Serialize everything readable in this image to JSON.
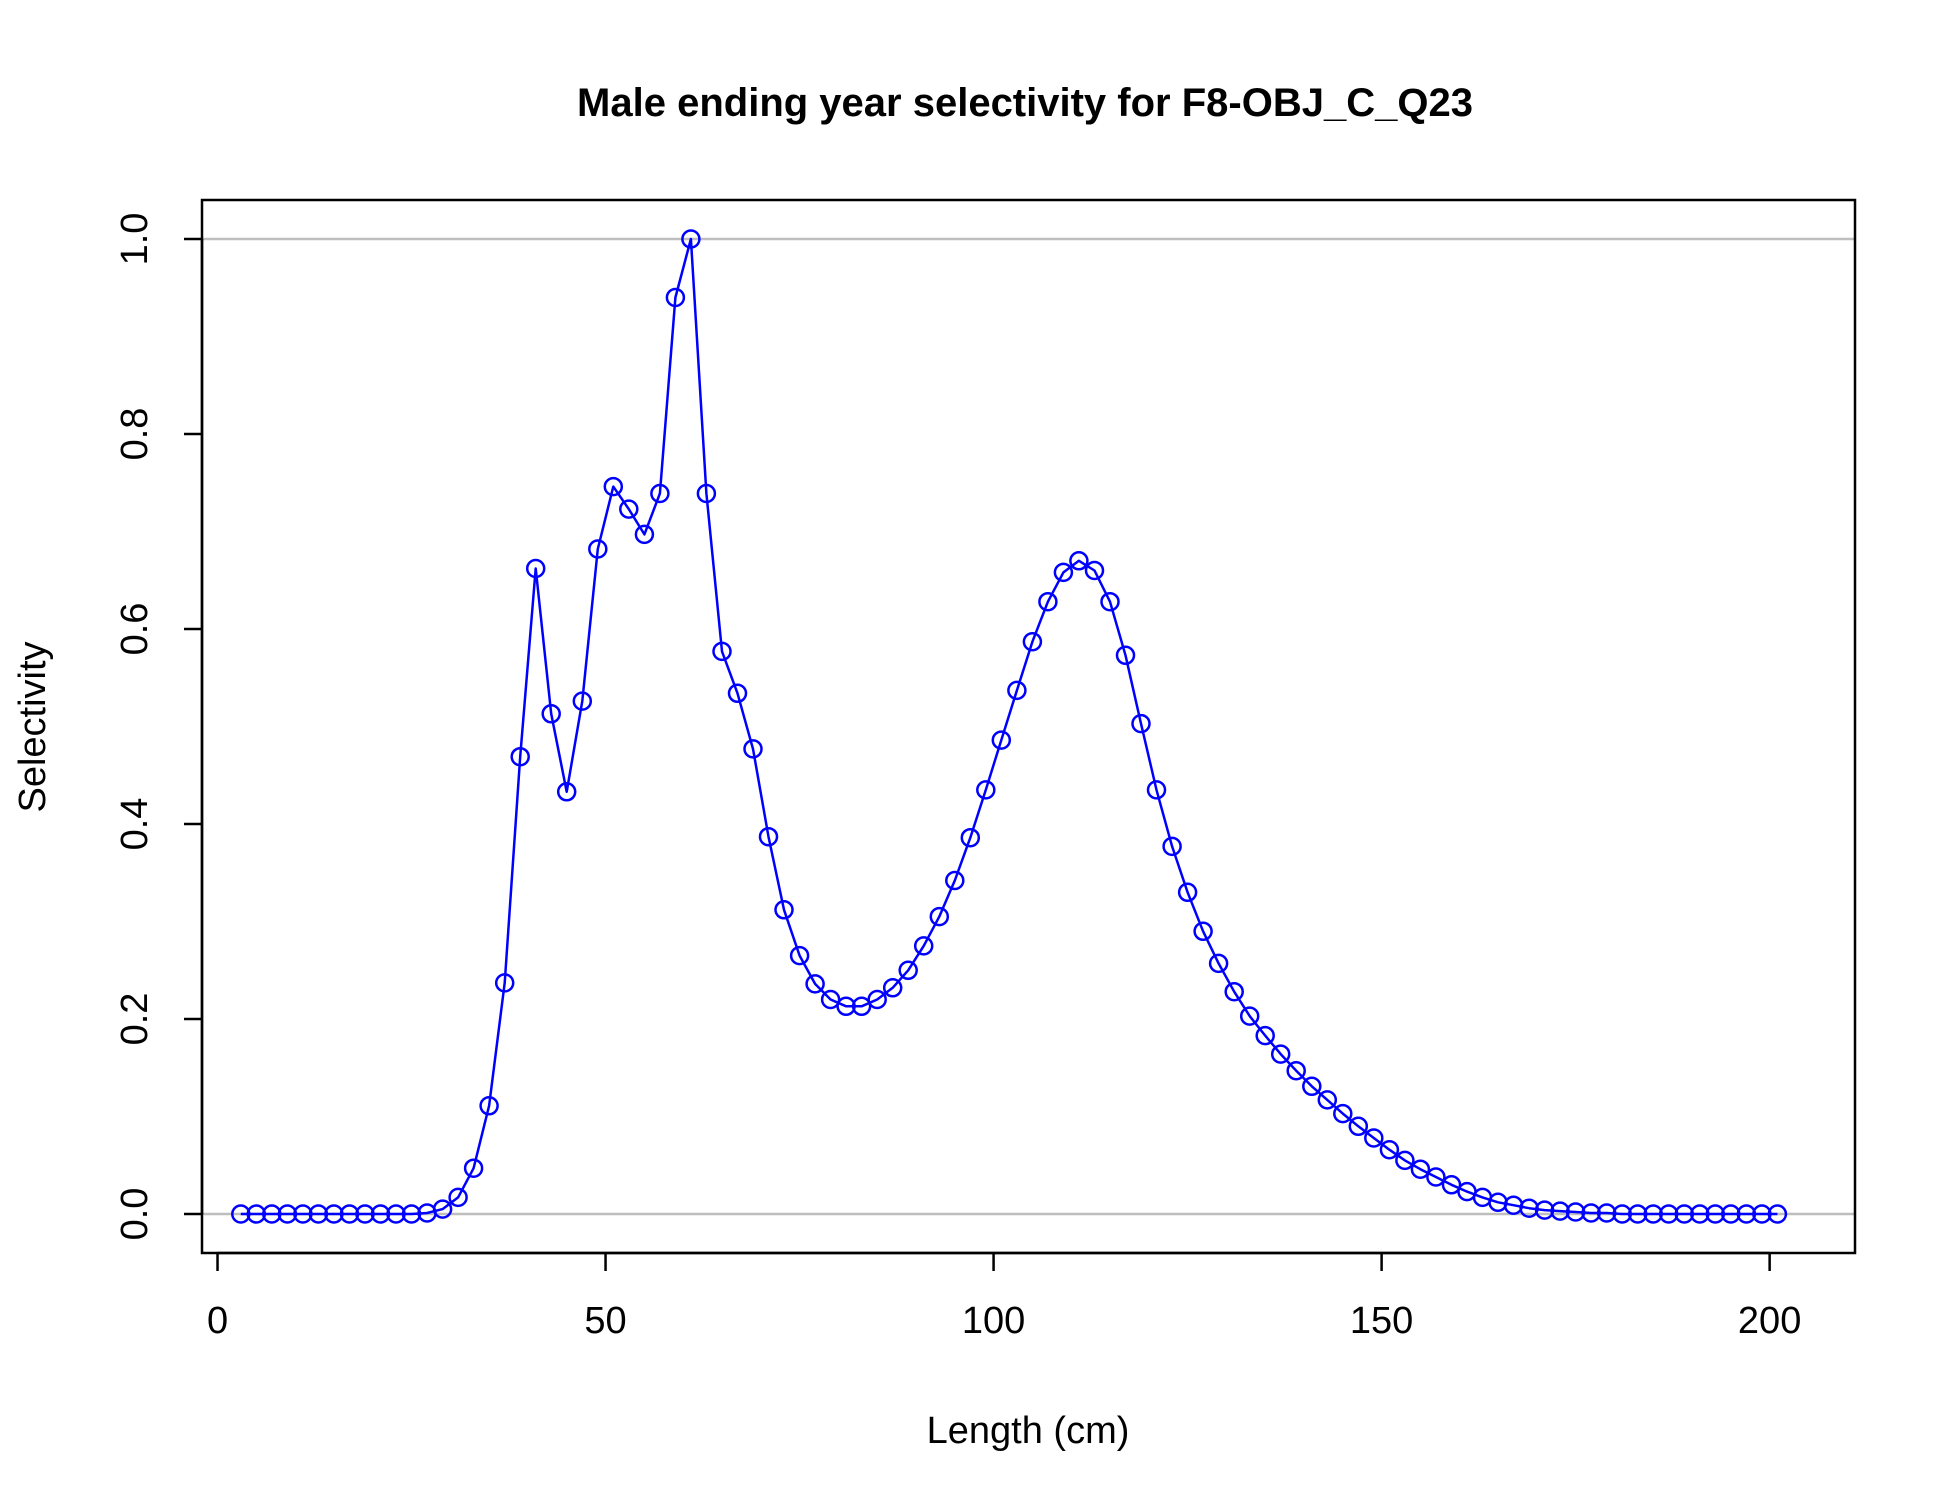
{
  "chart_data": {
    "type": "line",
    "title": "Male ending year selectivity for F8-OBJ_C_Q23",
    "xlabel": "Length (cm)",
    "ylabel": "Selectivity",
    "xlim": [
      -2,
      211
    ],
    "ylim": [
      -0.04,
      1.04
    ],
    "x_ticks": [
      0,
      50,
      100,
      150,
      200
    ],
    "y_ticks": [
      0.0,
      0.2,
      0.4,
      0.6,
      0.8,
      1.0
    ],
    "x_tick_labels": [
      "0",
      "50",
      "100",
      "150",
      "200"
    ],
    "y_tick_labels": [
      "0.0",
      "0.2",
      "0.4",
      "0.6",
      "0.8",
      "1.0"
    ],
    "reference_lines": [
      0,
      1
    ],
    "reference_line_color": "#bebebe",
    "series_color": "#0000ff",
    "marker": "open-circle",
    "grid": false,
    "series": [
      {
        "x": [
          3,
          5,
          7,
          9,
          11,
          13,
          15,
          17,
          19,
          21,
          23,
          25,
          27,
          29,
          31,
          33,
          35,
          37,
          39,
          41,
          43,
          45,
          47,
          49,
          51,
          53,
          55,
          57,
          59,
          61,
          63,
          65,
          67,
          69,
          71,
          73,
          75,
          77,
          79,
          81,
          83,
          85,
          87,
          89,
          91,
          93,
          95,
          97,
          99,
          101,
          103,
          105,
          107,
          109,
          111,
          113,
          115,
          117,
          119,
          121,
          123,
          125,
          127,
          129,
          131,
          133,
          135,
          137,
          139,
          141,
          143,
          145,
          147,
          149,
          151,
          153,
          155,
          157,
          159,
          161,
          163,
          165,
          167,
          169,
          171,
          173,
          175,
          177,
          179,
          181,
          183,
          185,
          187,
          189,
          191,
          193,
          195,
          197,
          199,
          201
        ],
        "values": [
          0,
          0,
          0,
          0,
          0,
          0,
          0,
          0,
          0,
          0,
          0,
          0,
          0.001,
          0.005,
          0.017,
          0.047,
          0.111,
          0.237,
          0.469,
          0.662,
          0.513,
          0.433,
          0.526,
          0.682,
          0.746,
          0.723,
          0.697,
          0.739,
          0.94,
          1.0,
          0.739,
          0.577,
          0.534,
          0.477,
          0.387,
          0.312,
          0.265,
          0.236,
          0.22,
          0.213,
          0.213,
          0.22,
          0.232,
          0.25,
          0.275,
          0.305,
          0.342,
          0.386,
          0.435,
          0.486,
          0.537,
          0.587,
          0.628,
          0.658,
          0.67,
          0.66,
          0.628,
          0.573,
          0.503,
          0.435,
          0.377,
          0.33,
          0.29,
          0.257,
          0.228,
          0.203,
          0.183,
          0.164,
          0.147,
          0.131,
          0.117,
          0.103,
          0.09,
          0.078,
          0.066,
          0.055,
          0.046,
          0.038,
          0.03,
          0.023,
          0.017,
          0.012,
          0.009,
          0.006,
          0.004,
          0.003,
          0.002,
          0.001,
          0.001,
          0,
          0,
          0,
          0,
          0,
          0,
          0,
          0,
          0,
          0,
          0
        ]
      }
    ]
  }
}
